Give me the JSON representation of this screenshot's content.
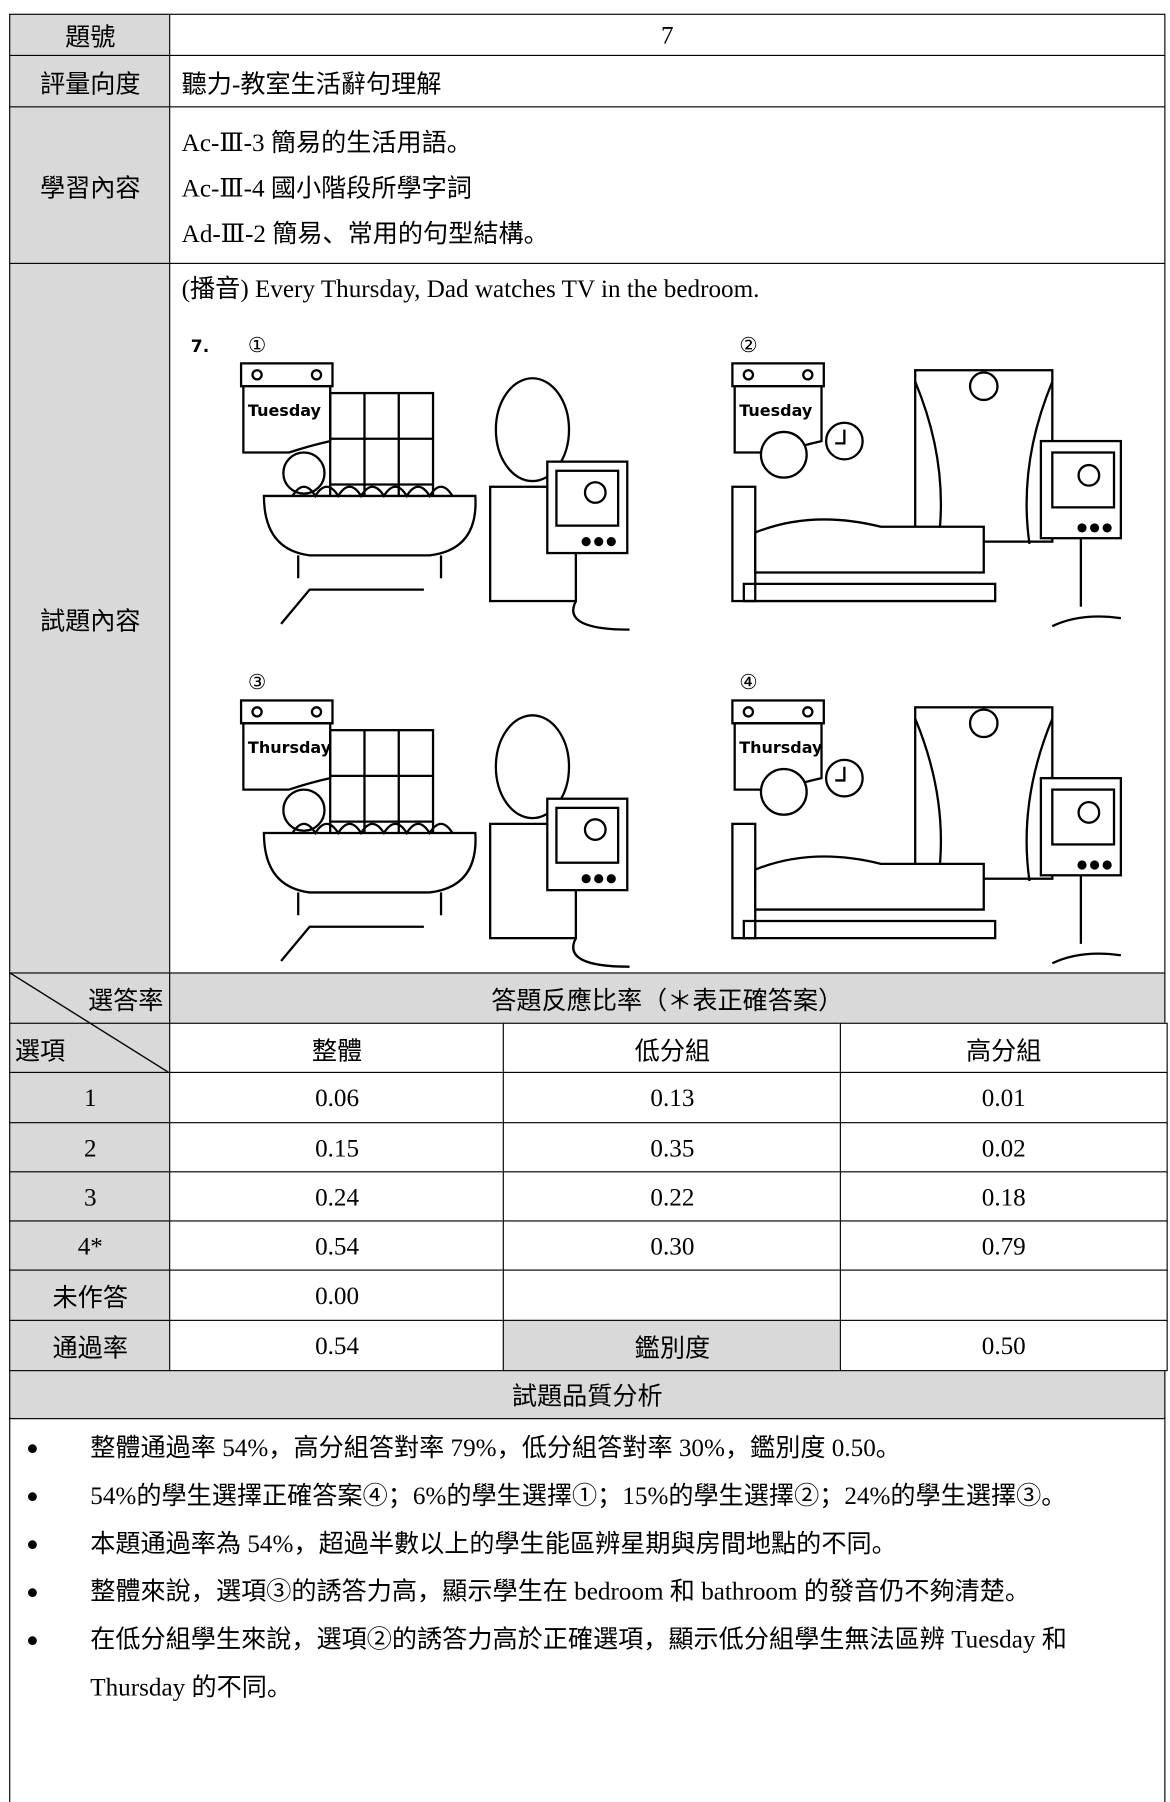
{
  "table": {
    "rows": [
      [
        "題號",
        "7"
      ],
      [
        "評量向度",
        "聽力-教室生活辭句理解"
      ]
    ],
    "learning": {
      "label": "學習內容",
      "items": [
        "Ac-Ⅲ-3 簡易的生活用語。",
        "Ac-Ⅲ-4 國小階段所學字詞",
        "Ad-Ⅲ-2 簡易、常用的句型結構。"
      ]
    },
    "question": {
      "label": "試題內容",
      "audio": "(播音) Every Thursday, Dad watches TV in the bedroom.",
      "number": "7.",
      "options": [
        {
          "mark": "①",
          "day": "Tuesday"
        },
        {
          "mark": "②",
          "day": "Tuesday"
        },
        {
          "mark": "③",
          "day": "Thursday"
        },
        {
          "mark": "④",
          "day": "Thursday"
        }
      ]
    },
    "response": {
      "corner_top": "選答率",
      "corner_bottom": "選項",
      "title": "答題反應比率（＊表正確答案）",
      "columns": [
        "整體",
        "低分組",
        "高分組"
      ],
      "rows": [
        [
          "1",
          "0.06",
          "0.13",
          "0.01"
        ],
        [
          "2",
          "0.15",
          "0.35",
          "0.02"
        ],
        [
          "3",
          "0.24",
          "0.22",
          "0.18"
        ],
        [
          "4*",
          "0.54",
          "0.30",
          "0.79"
        ],
        [
          "未作答",
          "0.00"
        ],
        [
          "通過率",
          "0.54",
          "鑑別度",
          "0.50"
        ]
      ]
    },
    "analysis": {
      "title": "試題品質分析",
      "bullets": [
        "整體通過率 54%，高分組答對率 79%，低分組答對率 30%，鑑別度 0.50。",
        "54%的學生選擇正確答案④；6%的學生選擇①；15%的學生選擇②；24%的學生選擇③。",
        "本題通過率為 54%，超過半數以上的學生能區辨星期與房間地點的不同。",
        "整體來說，選項③的誘答力高，顯示學生在 bedroom 和 bathroom 的發音仍不夠清楚。",
        "在低分組學生來說，選項②的誘答力高於正確選項，顯示低分組學生無法區辨 Tuesday 和 Thursday 的不同。"
      ]
    }
  }
}
